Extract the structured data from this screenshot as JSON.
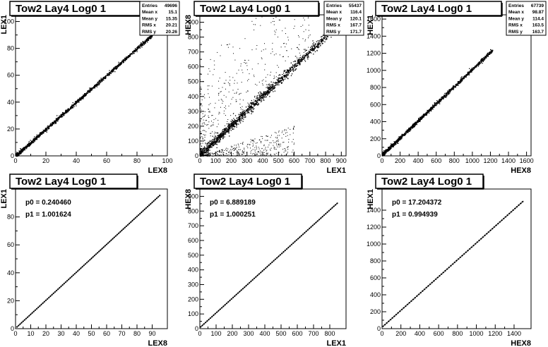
{
  "chart_data": [
    {
      "type": "scatter",
      "title": "Tow2 Lay4 Log0 1",
      "xlabel": "LEX8",
      "ylabel": "LEX1",
      "xlim": [
        0,
        100
      ],
      "ylim": [
        0,
        105
      ],
      "xticks": [
        0,
        20,
        40,
        60,
        80,
        100
      ],
      "yticks": [
        0,
        20,
        40,
        60,
        80,
        100
      ],
      "stats": [
        {
          "label": "Entries",
          "value": "49696"
        },
        {
          "label": "Mean x",
          "value": "15.1"
        },
        {
          "label": "Mean y",
          "value": "15.35"
        },
        {
          "label": "RMS x",
          "value": "20.21"
        },
        {
          "label": "RMS y",
          "value": "20.26"
        }
      ],
      "trend": {
        "x_end": 92,
        "slope": 1.0,
        "intercept": 0.2,
        "spread": 0.8,
        "scatter_count": 0
      }
    },
    {
      "type": "scatter",
      "title": "Tow2 Lay4 Log0 1",
      "xlabel": "LEX1",
      "ylabel": "HEX8",
      "xlim": [
        0,
        930
      ],
      "ylim": [
        0,
        950
      ],
      "xticks": [
        0,
        100,
        200,
        300,
        400,
        500,
        600,
        700,
        800,
        900
      ],
      "yticks": [
        0,
        100,
        200,
        300,
        400,
        500,
        600,
        700,
        800,
        900
      ],
      "stats": [
        {
          "label": "Entries",
          "value": "55437"
        },
        {
          "label": "Mean x",
          "value": "116.4"
        },
        {
          "label": "Mean y",
          "value": "120.1"
        },
        {
          "label": "RMS x",
          "value": "167.7"
        },
        {
          "label": "RMS y",
          "value": "171.7"
        }
      ],
      "trend": {
        "x_end": 870,
        "slope": 1.0,
        "intercept": 7,
        "spread": 18,
        "scatter_count": 380
      }
    },
    {
      "type": "scatter",
      "title": "Tow2 Lay4 Log0 1",
      "xlabel": "HEX8",
      "ylabel": "HEX1",
      "xlim": [
        0,
        1650
      ],
      "ylim": [
        0,
        1650
      ],
      "xticks": [
        0,
        200,
        400,
        600,
        800,
        1000,
        1200,
        1400,
        1600
      ],
      "yticks": [
        0,
        200,
        400,
        600,
        800,
        1000,
        1200,
        1400,
        1600
      ],
      "stats": [
        {
          "label": "Entries",
          "value": "67739"
        },
        {
          "label": "Mean x",
          "value": "98.87"
        },
        {
          "label": "Mean y",
          "value": "114.4"
        },
        {
          "label": "RMS x",
          "value": "163.5"
        },
        {
          "label": "RMS y",
          "value": "163.7"
        }
      ],
      "trend": {
        "x_end": 1220,
        "slope": 1.0,
        "intercept": 17,
        "spread": 12,
        "scatter_count": 0
      }
    },
    {
      "type": "line",
      "title": "Tow2 Lay4 Log0 1",
      "xlabel": "LEX8",
      "ylabel": "LEX1",
      "xlim": [
        0,
        100
      ],
      "ylim": [
        0,
        100
      ],
      "xticks": [
        0,
        10,
        20,
        30,
        40,
        50,
        60,
        70,
        80,
        90
      ],
      "yticks": [
        0,
        20,
        40,
        60,
        80
      ],
      "fit": [
        {
          "label": "p0",
          "value": "0.240460"
        },
        {
          "label": "p1",
          "value": "1.001624"
        }
      ],
      "profile": {
        "x_start": 1,
        "x_end": 95,
        "step": 1,
        "p0": 0.24046,
        "p1": 1.001624
      }
    },
    {
      "type": "line",
      "title": "Tow2 Lay4 Log0 1",
      "xlabel": "LEX1",
      "ylabel": "HEX8",
      "xlim": [
        0,
        900
      ],
      "ylim": [
        0,
        950
      ],
      "xticks": [
        0,
        100,
        200,
        300,
        400,
        500,
        600,
        700,
        800
      ],
      "yticks": [
        0,
        100,
        200,
        300,
        400,
        500,
        600,
        700,
        800,
        900
      ],
      "fit": [
        {
          "label": "p0",
          "value": "6.889189"
        },
        {
          "label": "p1",
          "value": "1.000251"
        }
      ],
      "profile": {
        "x_start": 5,
        "x_end": 850,
        "step": 10,
        "p0": 6.889189,
        "p1": 1.000251
      }
    },
    {
      "type": "line",
      "title": "Tow2 Lay4 Log0 1",
      "xlabel": "HEX8",
      "ylabel": "HEX1",
      "xlim": [
        0,
        1580
      ],
      "ylim": [
        0,
        1650
      ],
      "xticks": [
        0,
        200,
        400,
        600,
        800,
        1000,
        1200,
        1400
      ],
      "yticks": [
        0,
        200,
        400,
        600,
        800,
        1000,
        1200,
        1400
      ],
      "fit": [
        {
          "label": "p0",
          "value": "17.204372"
        },
        {
          "label": "p1",
          "value": "0.994939"
        }
      ],
      "profile": {
        "x_start": 10,
        "x_end": 1500,
        "step": 20,
        "p0": 17.204372,
        "p1": 0.994939
      }
    }
  ]
}
